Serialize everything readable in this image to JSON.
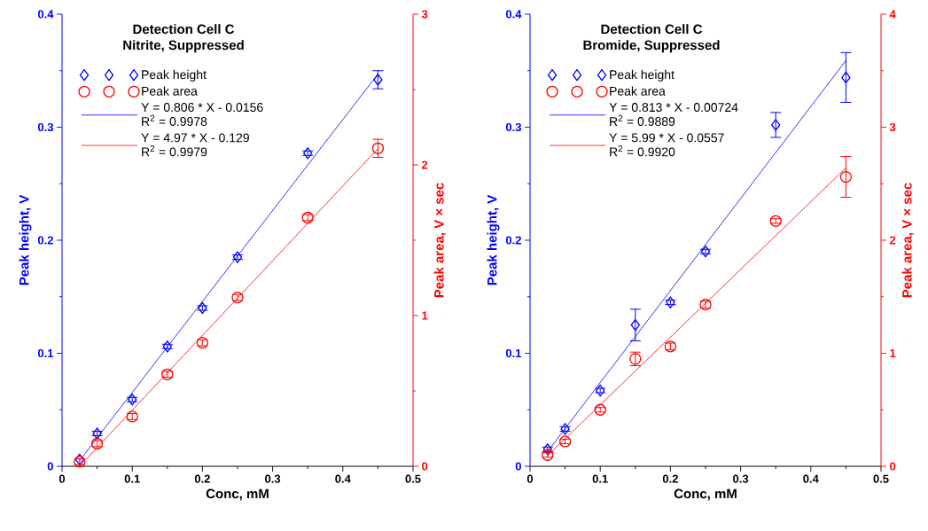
{
  "chart_data": [
    {
      "type": "scatter",
      "title": "Detection Cell C",
      "subtitle": "Nitrite, Suppressed",
      "xlabel": "Conc, mM",
      "ylabel": "Peak height, V",
      "y2label": "Peak area, V × sec",
      "xlim": [
        0,
        0.5
      ],
      "xticks": [
        0,
        0.1,
        0.2,
        0.3,
        0.4,
        0.5
      ],
      "ylim": [
        0,
        0.4
      ],
      "yticks": [
        0,
        0.1,
        0.2,
        0.3,
        0.4
      ],
      "y2lim": [
        0,
        3
      ],
      "y2ticks": [
        0,
        1,
        2,
        3
      ],
      "legend": "top left",
      "annotations": [
        "R$^{2}$ = 0.9978",
        "R$^{2}$ = 0.9979"
      ],
      "series": [
        {
          "name": "Peak height",
          "marker": "diamond",
          "color": "#0000ff",
          "x": [
            0.025,
            0.05,
            0.1,
            0.15,
            0.2,
            0.25,
            0.35,
            0.45
          ],
          "values": [
            0.006,
            0.029,
            0.059,
            0.106,
            0.14,
            0.185,
            0.277,
            0.342
          ],
          "errors": [
            null,
            0.002,
            0.002,
            0.002,
            0.002,
            0.002,
            0.002,
            0.008
          ]
        },
        {
          "name": "Peak area",
          "marker": "circle",
          "axis": "y2",
          "color": "#ff0000",
          "x": [
            0.025,
            0.05,
            0.1,
            0.15,
            0.2,
            0.25,
            0.35,
            0.45
          ],
          "values": [
            0.03,
            0.15,
            0.33,
            0.61,
            0.82,
            1.12,
            1.65,
            2.11
          ],
          "errors": [
            0.02,
            0.02,
            0.02,
            0.02,
            0.02,
            0.02,
            0.02,
            0.06
          ]
        },
        {
          "name": "Y = 0.806 * X - 0.0156",
          "type": "line",
          "color": "#0000ff",
          "x": [
            0.025,
            0.45
          ],
          "values": [
            0.005,
            0.347
          ]
        },
        {
          "name": "Y = 4.97 * X - 0.129",
          "type": "line",
          "axis": "y2",
          "color": "#ff0000",
          "x": [
            0.025,
            0.45
          ],
          "values": [
            0,
            2.108
          ]
        }
      ]
    },
    {
      "type": "scatter",
      "title": "Detection Cell C",
      "subtitle": "Bromide, Suppressed",
      "xlabel": "Conc, mM",
      "ylabel": "Peak height, V",
      "y2label": "Peak area, V × sec",
      "xlim": [
        0,
        0.5
      ],
      "xticks": [
        0,
        0.1,
        0.2,
        0.3,
        0.4,
        0.5
      ],
      "ylim": [
        0,
        0.4
      ],
      "yticks": [
        0,
        0.1,
        0.2,
        0.3,
        0.4
      ],
      "y2lim": [
        0,
        4
      ],
      "y2ticks": [
        0,
        1,
        2,
        3,
        4
      ],
      "legend": "top left",
      "annotations": [
        "R$^{2}$ = 0.9889",
        "R$^{2}$ = 0.9920"
      ],
      "series": [
        {
          "name": "Peak height",
          "marker": "diamond",
          "color": "#0000ff",
          "x": [
            0.025,
            0.05,
            0.1,
            0.15,
            0.2,
            0.25,
            0.35,
            0.45
          ],
          "values": [
            0.015,
            0.033,
            0.067,
            0.125,
            0.145,
            0.19,
            0.302,
            0.344
          ],
          "errors": [
            0.002,
            0.002,
            0.002,
            0.014,
            0.002,
            0.002,
            0.011,
            0.022
          ]
        },
        {
          "name": "Peak area",
          "marker": "circle",
          "axis": "y2",
          "color": "#ff0000",
          "x": [
            0.025,
            0.05,
            0.1,
            0.15,
            0.2,
            0.25,
            0.35,
            0.45
          ],
          "values": [
            0.1,
            0.22,
            0.5,
            0.95,
            1.06,
            1.43,
            2.17,
            2.56
          ],
          "errors": [
            0.02,
            0.02,
            0.02,
            0.06,
            0.03,
            0.03,
            0.02,
            0.18
          ]
        },
        {
          "name": "Y = 0.813 * X - 0.00724",
          "type": "line",
          "color": "#0000ff",
          "x": [
            0.025,
            0.45
          ],
          "values": [
            0.013,
            0.359
          ]
        },
        {
          "name": "Y = 5.99 * X - 0.0557",
          "type": "line",
          "axis": "y2",
          "color": "#ff0000",
          "x": [
            0.025,
            0.45
          ],
          "values": [
            0.094,
            2.64
          ]
        }
      ]
    }
  ]
}
